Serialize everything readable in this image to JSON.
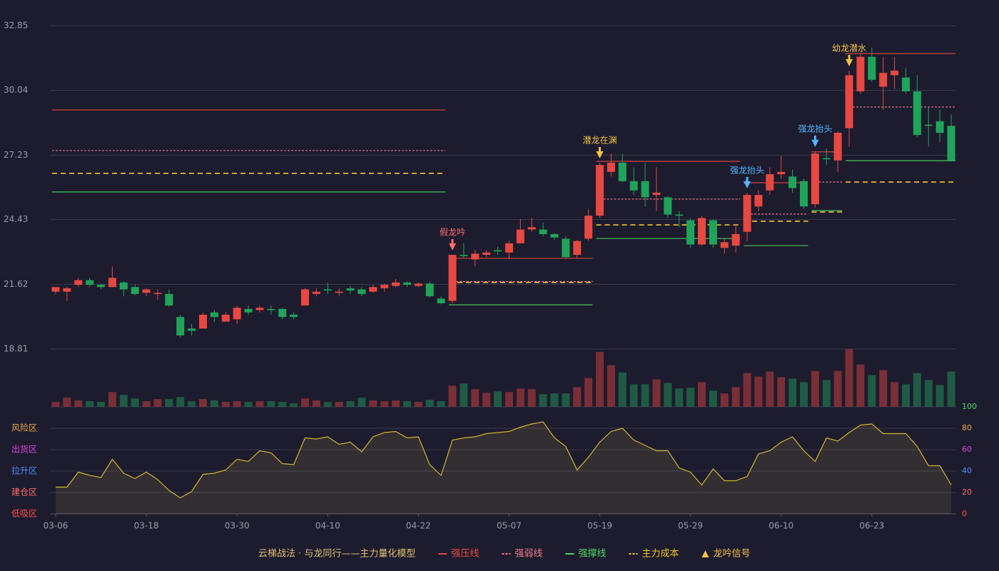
{
  "chart_data": {
    "type": "candlestick",
    "categories": [
      "03-06",
      null,
      null,
      null,
      null,
      null,
      null,
      null,
      "03-18",
      null,
      null,
      null,
      null,
      null,
      null,
      null,
      "03-30",
      null,
      null,
      null,
      null,
      null,
      null,
      null,
      "04-10",
      null,
      null,
      null,
      null,
      null,
      null,
      null,
      "04-22",
      null,
      null,
      null,
      null,
      null,
      null,
      null,
      "05-07",
      null,
      null,
      null,
      null,
      null,
      null,
      null,
      "05-19",
      null,
      null,
      null,
      null,
      null,
      null,
      null,
      "05-29",
      null,
      null,
      null,
      null,
      null,
      null,
      null,
      "06-10",
      null,
      null,
      null,
      null,
      null,
      null,
      null,
      "06-23",
      null,
      null,
      null,
      null,
      null,
      null,
      null
    ],
    "open": [
      21.3,
      21.3,
      21.6,
      21.8,
      21.6,
      21.5,
      21.7,
      21.5,
      21.25,
      21.2,
      21.2,
      20.2,
      19.7,
      19.7,
      20.4,
      20.0,
      20.1,
      20.55,
      20.5,
      20.55,
      20.55,
      20.3,
      20.7,
      21.2,
      21.4,
      21.25,
      21.45,
      21.4,
      21.3,
      21.45,
      21.55,
      21.7,
      21.55,
      21.65,
      21.0,
      20.9,
      22.9,
      22.7,
      22.9,
      23.1,
      23.0,
      23.4,
      24.0,
      24.0,
      23.8,
      23.6,
      22.9,
      23.6,
      24.6,
      26.5,
      26.9,
      26.1,
      26.1,
      25.5,
      25.4,
      24.65,
      24.4,
      23.35,
      24.4,
      23.2,
      23.3,
      23.9,
      25.0,
      25.7,
      26.4,
      26.3,
      26.1,
      25.1,
      27.1,
      27.0,
      28.4,
      30.0,
      31.5,
      30.2,
      30.7,
      30.6,
      30.0,
      28.55,
      28.7,
      28.5
    ],
    "high": [
      21.5,
      21.5,
      21.9,
      21.9,
      21.65,
      22.4,
      21.75,
      21.6,
      21.45,
      21.4,
      21.4,
      20.3,
      19.9,
      20.4,
      20.5,
      20.4,
      20.7,
      20.7,
      20.7,
      20.7,
      20.6,
      20.4,
      21.45,
      21.45,
      21.7,
      21.45,
      21.55,
      21.5,
      21.6,
      21.65,
      21.85,
      21.75,
      21.7,
      21.75,
      21.1,
      22.9,
      23.4,
      23.1,
      23.1,
      23.25,
      23.5,
      24.45,
      24.5,
      24.3,
      23.85,
      23.7,
      23.55,
      24.9,
      26.9,
      27.3,
      27.3,
      26.7,
      26.9,
      26.7,
      25.45,
      24.8,
      24.5,
      24.6,
      24.45,
      23.6,
      24.2,
      25.6,
      25.7,
      26.7,
      27.2,
      26.6,
      26.2,
      27.4,
      27.5,
      28.25,
      30.9,
      31.6,
      31.9,
      31.5,
      31.5,
      31.0,
      30.7,
      29.3,
      29.2,
      29.0
    ],
    "low": [
      21.2,
      20.9,
      21.5,
      21.5,
      21.4,
      21.5,
      21.1,
      21.15,
      21.1,
      20.95,
      20.65,
      19.3,
      19.4,
      19.7,
      20.0,
      20.0,
      19.9,
      20.3,
      20.4,
      20.3,
      20.1,
      20.1,
      20.7,
      21.1,
      21.2,
      21.1,
      21.2,
      21.1,
      21.25,
      21.3,
      21.5,
      21.5,
      21.5,
      21.05,
      20.75,
      20.8,
      22.75,
      22.4,
      22.8,
      22.9,
      22.7,
      23.4,
      23.9,
      23.7,
      23.55,
      22.75,
      22.75,
      23.5,
      24.5,
      26.3,
      26.05,
      25.5,
      25.0,
      24.8,
      24.5,
      24.1,
      23.2,
      23.3,
      23.2,
      22.95,
      23.0,
      23.5,
      24.8,
      25.5,
      26.2,
      25.6,
      24.9,
      24.95,
      26.8,
      26.5,
      27.6,
      29.9,
      30.4,
      29.2,
      30.1,
      29.9,
      28.0,
      27.6,
      27.8,
      27.0
    ],
    "close": [
      21.5,
      21.45,
      21.8,
      21.6,
      21.5,
      21.9,
      21.4,
      21.2,
      21.4,
      21.25,
      20.7,
      19.4,
      19.6,
      20.3,
      20.2,
      20.3,
      20.6,
      20.4,
      20.6,
      20.5,
      20.2,
      20.2,
      21.4,
      21.3,
      21.35,
      21.3,
      21.35,
      21.2,
      21.5,
      21.6,
      21.7,
      21.6,
      21.65,
      21.1,
      20.8,
      22.9,
      22.85,
      22.95,
      23.0,
      23.05,
      23.4,
      24.0,
      24.1,
      23.8,
      23.65,
      22.8,
      23.5,
      24.6,
      26.8,
      26.9,
      26.1,
      25.7,
      25.4,
      25.6,
      24.65,
      24.6,
      23.35,
      24.5,
      23.35,
      23.45,
      23.8,
      25.5,
      25.5,
      26.4,
      26.5,
      25.8,
      25.0,
      27.3,
      27.05,
      28.2,
      30.7,
      31.5,
      30.5,
      30.8,
      30.9,
      30.0,
      28.1,
      28.5,
      28.2,
      27.0
    ],
    "volume": [
      7,
      13,
      9,
      8,
      7,
      21,
      17,
      12,
      8,
      11,
      11,
      14,
      8,
      11,
      9,
      7,
      8,
      7,
      8,
      8,
      7,
      5,
      12,
      9,
      7,
      7,
      8,
      13,
      9,
      8,
      9,
      8,
      7,
      10,
      8,
      30,
      33,
      25,
      20,
      22,
      21,
      26,
      25,
      18,
      19,
      19,
      28,
      41,
      78,
      59,
      49,
      32,
      32,
      39,
      34,
      26,
      27,
      35,
      23,
      19,
      28,
      48,
      43,
      50,
      42,
      40,
      35,
      51,
      38,
      51,
      82,
      60,
      45,
      52,
      35,
      32,
      48,
      38,
      31,
      50
    ],
    "up_color": "#e8483f",
    "down_color": "#1fa55a",
    "up_volume_color": "#7a2e35",
    "down_volume_color": "#1f5a44",
    "ylim": [
      18.81,
      32.85
    ],
    "yticks": [
      32.85,
      30.04,
      27.23,
      24.43,
      21.62,
      18.81
    ],
    "grid": true,
    "levels": [
      {
        "name": "强压线",
        "color": "#e8483f",
        "dashed": false,
        "segments": [
          {
            "start": 0,
            "end": 34,
            "value": 29.19
          },
          {
            "start": 35,
            "end": 47,
            "value": 22.75
          },
          {
            "start": 48,
            "end": 60,
            "value": 26.96
          },
          {
            "start": 61,
            "end": 66,
            "value": 26.03
          },
          {
            "start": 67,
            "end": 69,
            "value": 27.37
          },
          {
            "start": 70,
            "end": 79,
            "value": 31.64
          }
        ]
      },
      {
        "name": "强弱线",
        "color": "#f07a8a",
        "dashed": true,
        "segments": [
          {
            "start": 0,
            "end": 34,
            "value": 27.43
          },
          {
            "start": 35,
            "end": 47,
            "value": 21.74
          },
          {
            "start": 48,
            "end": 60,
            "value": 25.32
          },
          {
            "start": 61,
            "end": 66,
            "value": 24.67
          },
          {
            "start": 67,
            "end": 69,
            "value": 26.06
          },
          {
            "start": 70,
            "end": 79,
            "value": 29.32
          }
        ]
      },
      {
        "name": "强撑线",
        "color": "#4cd964",
        "dashed": false,
        "segments": [
          {
            "start": 0,
            "end": 34,
            "value": 25.63
          },
          {
            "start": 35,
            "end": 47,
            "value": 20.73
          },
          {
            "start": 48,
            "end": 60,
            "value": 23.61
          },
          {
            "start": 61,
            "end": 66,
            "value": 23.3
          },
          {
            "start": 67,
            "end": 69,
            "value": 24.82
          },
          {
            "start": 70,
            "end": 79,
            "value": 26.99
          }
        ]
      },
      {
        "name": "主力成本",
        "color": "#f5c518",
        "dashed": true,
        "segments": [
          {
            "start": 0,
            "end": 34,
            "value": 26.44
          },
          {
            "start": 35,
            "end": 47,
            "value": 21.7
          },
          {
            "start": 48,
            "end": 60,
            "value": 24.2
          },
          {
            "start": 61,
            "end": 66,
            "value": 24.36
          },
          {
            "start": 67,
            "end": 69,
            "value": 24.76
          },
          {
            "start": 70,
            "end": 79,
            "value": 26.06
          }
        ]
      }
    ],
    "signals": [
      {
        "index": 35,
        "label": "假龙吟",
        "color": "#ff6b6b"
      },
      {
        "index": 48,
        "label": "潜龙在渊",
        "color": "#f5c242"
      },
      {
        "index": 61,
        "label": "强龙抬头",
        "color": "#4db8ff"
      },
      {
        "index": 67,
        "label": "强龙抬头",
        "color": "#4db8ff"
      },
      {
        "index": 70,
        "label": "幼龙潜水",
        "color": "#f5c242"
      }
    ],
    "signal_legend": "龙吟信号",
    "signal_legend_color": "#f5c242",
    "legend_title": "云梯战法 · 与龙同行——主力量化模型",
    "oscillator": {
      "values": [
        25,
        25,
        39,
        36,
        34,
        51,
        38,
        33,
        39,
        32,
        22,
        15,
        21,
        37,
        38,
        41,
        51,
        49,
        59,
        57,
        47,
        46,
        71,
        70,
        72,
        65,
        67,
        58,
        72,
        76,
        77,
        71,
        72,
        46,
        36,
        69,
        71,
        72,
        75,
        76,
        77,
        81,
        84,
        86,
        71,
        63,
        41,
        53,
        67,
        77,
        80,
        69,
        64,
        59,
        59,
        43,
        39,
        27,
        42,
        31,
        31,
        35,
        56,
        59,
        67,
        72,
        59,
        49,
        71,
        68,
        76,
        83,
        84,
        75,
        75,
        75,
        63,
        45,
        45,
        27
      ],
      "color": "#d4b52a",
      "ylim": [
        0,
        100
      ],
      "yticks": [
        0,
        20,
        40,
        60,
        80,
        100
      ],
      "ytick_colors": [
        "#ff4d4d",
        "#ff6b6b",
        "#4b8bff",
        "#e040e0",
        "#e8a33d",
        "#4cd964"
      ],
      "zones": [
        {
          "label": "风险区",
          "value": 80,
          "color": "#e8a33d"
        },
        {
          "label": "出货区",
          "value": 60,
          "color": "#e040e0"
        },
        {
          "label": "拉升区",
          "value": 40,
          "color": "#4b8bff"
        },
        {
          "label": "建仓区",
          "value": 20,
          "color": "#ff6b6b"
        },
        {
          "label": "低吸区",
          "value": 0,
          "color": "#ff4d4d"
        }
      ]
    }
  }
}
